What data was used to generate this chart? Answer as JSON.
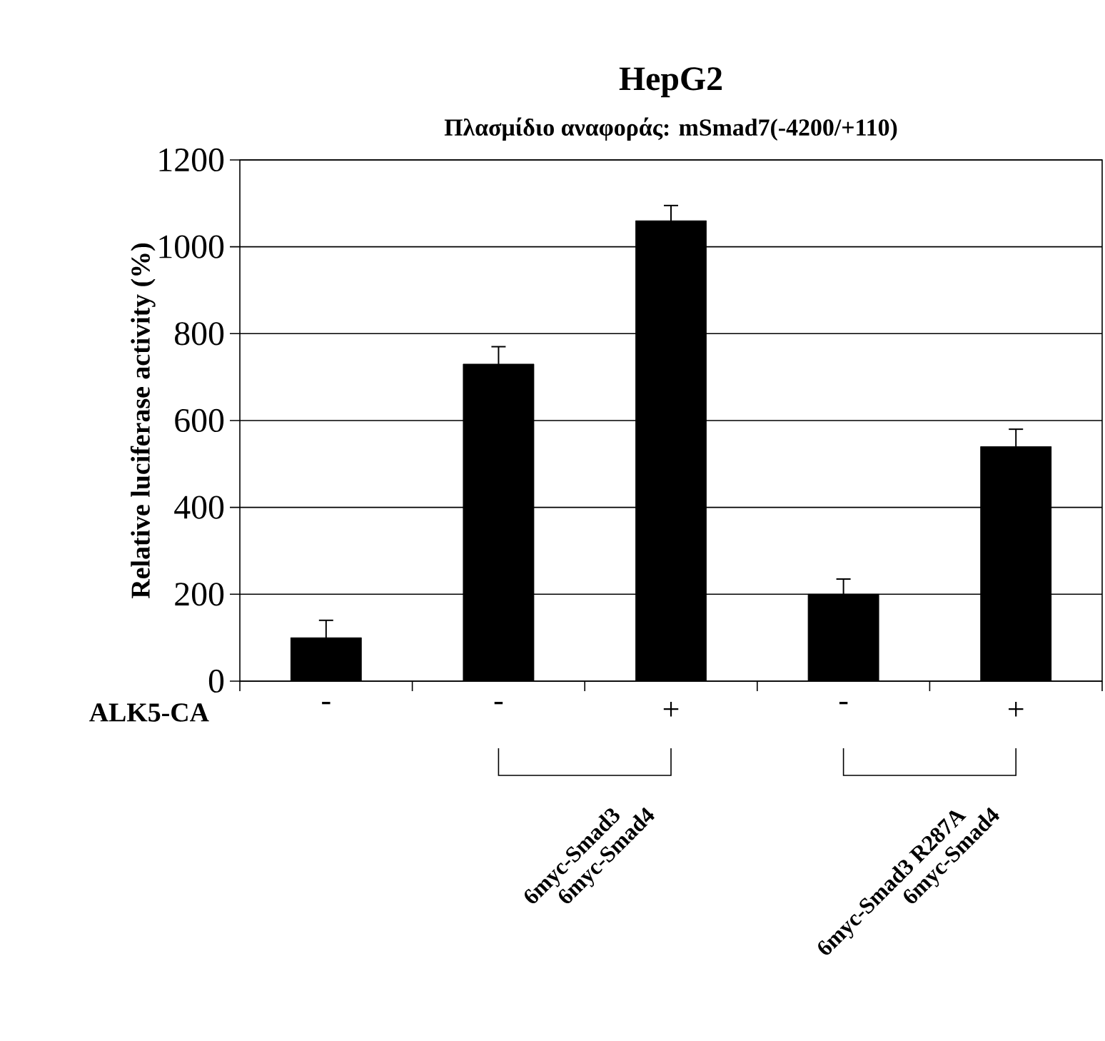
{
  "chart_data": {
    "type": "bar",
    "title": "HepG2",
    "subtitle": "Πλασμίδιο αναφοράς:  mSmad7(-4200/+110)",
    "ylabel": "Relative luciferase activity (%)",
    "categories": [
      "-",
      "-",
      "+",
      "-",
      "+"
    ],
    "values": [
      100,
      730,
      1060,
      200,
      540
    ],
    "errors": [
      40,
      40,
      35,
      35,
      40
    ],
    "color": "#000000",
    "ylim": [
      0,
      1200
    ],
    "yticks": [
      0,
      200,
      400,
      600,
      800,
      1000,
      1200
    ],
    "grid": "y",
    "annotations": [
      "ALK5-CA",
      "6myc-Smad3",
      "6myc-Smad4",
      "6myc-Smad3 R287A",
      "6myc-Smad4"
    ]
  }
}
